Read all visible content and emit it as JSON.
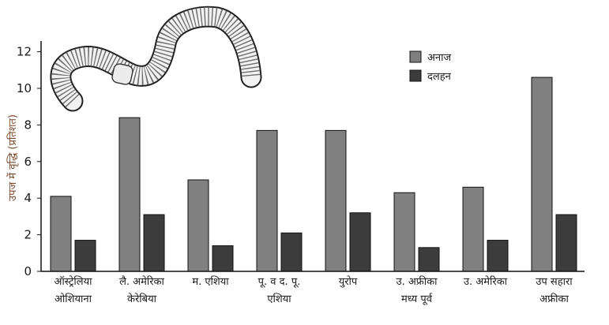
{
  "chart_data": {
    "type": "bar",
    "title": "",
    "xlabel": "",
    "ylabel": "उपज में वृद्धि (प्रतिशत)",
    "ylim": [
      0,
      12.5
    ],
    "yticks": [
      "0",
      "2",
      "4",
      "6",
      "8",
      "10",
      "12"
    ],
    "grid": false,
    "legend_position": "top-right",
    "categories": [
      [
        "ऑस्ट्रेलिया",
        "ओशियाना"
      ],
      [
        "लै. अमेरिका",
        "केरेबिया"
      ],
      [
        "म. एशिया"
      ],
      [
        "पू. व द. पू.",
        "एशिया"
      ],
      [
        "युरोप"
      ],
      [
        "उ. अफ्रीका",
        "मध्य पूर्व"
      ],
      [
        "उ. अमेरिका"
      ],
      [
        "उप सहारा",
        "अफ्रीका"
      ]
    ],
    "series": [
      {
        "name": "अनाज",
        "color": "#808080",
        "values": [
          4.1,
          8.4,
          5.0,
          7.7,
          7.7,
          4.3,
          4.6,
          10.6
        ]
      },
      {
        "name": "दलहन",
        "color": "#3c3c3c",
        "values": [
          1.7,
          3.1,
          1.4,
          2.1,
          3.2,
          1.3,
          1.7,
          3.1
        ]
      }
    ],
    "illustration": "earthworm-illustration"
  }
}
